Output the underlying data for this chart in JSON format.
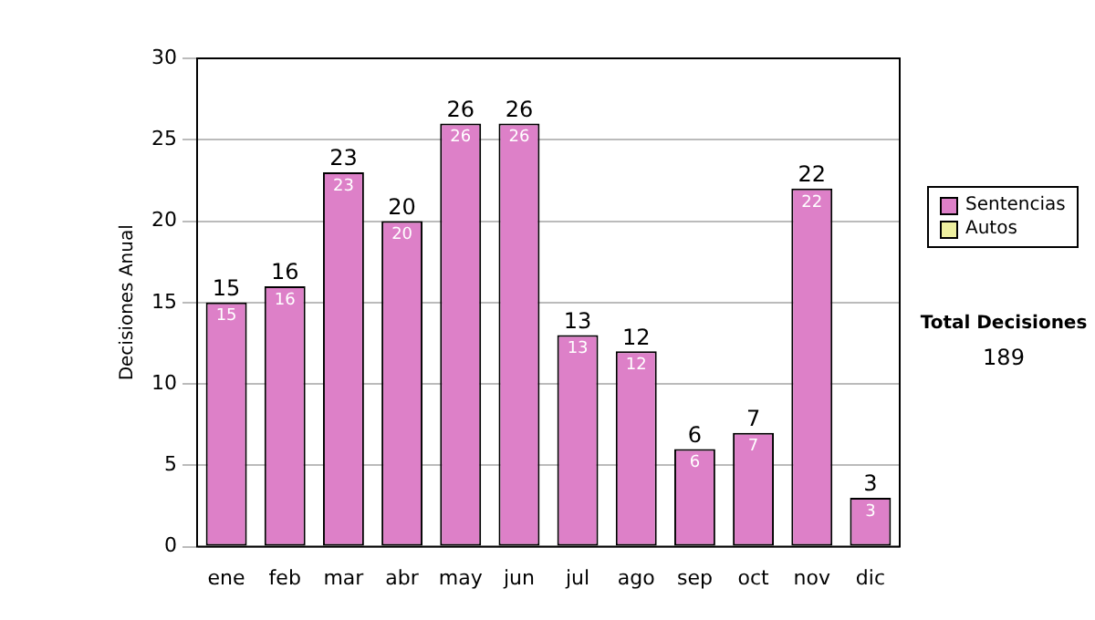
{
  "chart_data": {
    "type": "bar",
    "ylabel": "Decisiones Anual",
    "categories": [
      "ene",
      "feb",
      "mar",
      "abr",
      "may",
      "jun",
      "jul",
      "ago",
      "sep",
      "oct",
      "nov",
      "dic"
    ],
    "series": [
      {
        "name": "Sentencias",
        "color": "#dd80c8",
        "values": [
          15,
          16,
          23,
          20,
          26,
          26,
          13,
          12,
          6,
          7,
          22,
          3
        ],
        "value_labels": [
          "15",
          "16",
          "23",
          "20",
          "26",
          "26",
          "13",
          "12",
          "6",
          "7",
          "22",
          "3"
        ]
      },
      {
        "name": "Autos",
        "color": "#eef0a0",
        "values": [
          0,
          0,
          0,
          0,
          0,
          0,
          0,
          0,
          0,
          0,
          0,
          0
        ]
      }
    ],
    "stacked": true,
    "totals": [
      "15",
      "16",
      "23",
      "20",
      "26",
      "26",
      "13",
      "12",
      "6",
      "7",
      "22",
      "3"
    ],
    "ylim": [
      0,
      30
    ],
    "yticks": [
      0,
      5,
      10,
      15,
      20,
      25,
      30
    ],
    "grid": "y",
    "legend": "right",
    "annotations": [
      "Total Decisiones",
      "189"
    ]
  }
}
